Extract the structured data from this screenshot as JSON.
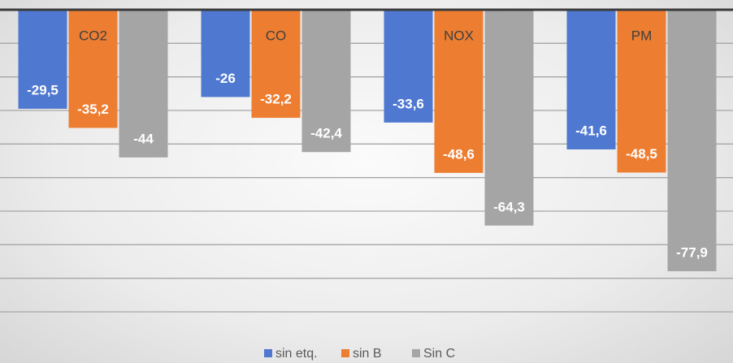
{
  "chart_data": {
    "type": "bar",
    "categories": [
      "CO2",
      "CO",
      "NOX",
      "PM"
    ],
    "series": [
      {
        "name": "sin etq.",
        "color": "#4f78d0",
        "values": [
          -29.5,
          -26,
          -33.6,
          -41.6
        ],
        "value_labels": [
          "-29,5",
          "-26",
          "-33,6",
          "-41,6"
        ]
      },
      {
        "name": "sin B",
        "color": "#ed7d31",
        "values": [
          -35.2,
          -32.2,
          -48.6,
          -48.5
        ],
        "value_labels": [
          "-35,2",
          "-32,2",
          "-48,6",
          "-48,5"
        ]
      },
      {
        "name": "Sin C",
        "color": "#a5a5a5",
        "values": [
          -44,
          -42.4,
          -64.3,
          -77.9
        ],
        "value_labels": [
          "-44",
          "-42,4",
          "-64,3",
          "-77,9"
        ]
      }
    ],
    "ylim": [
      -90,
      0
    ],
    "yticks": [
      0,
      -10,
      -20,
      -30,
      -40,
      -50,
      -60,
      -70,
      -80,
      -90
    ],
    "grid": true,
    "legend": "bottom"
  }
}
